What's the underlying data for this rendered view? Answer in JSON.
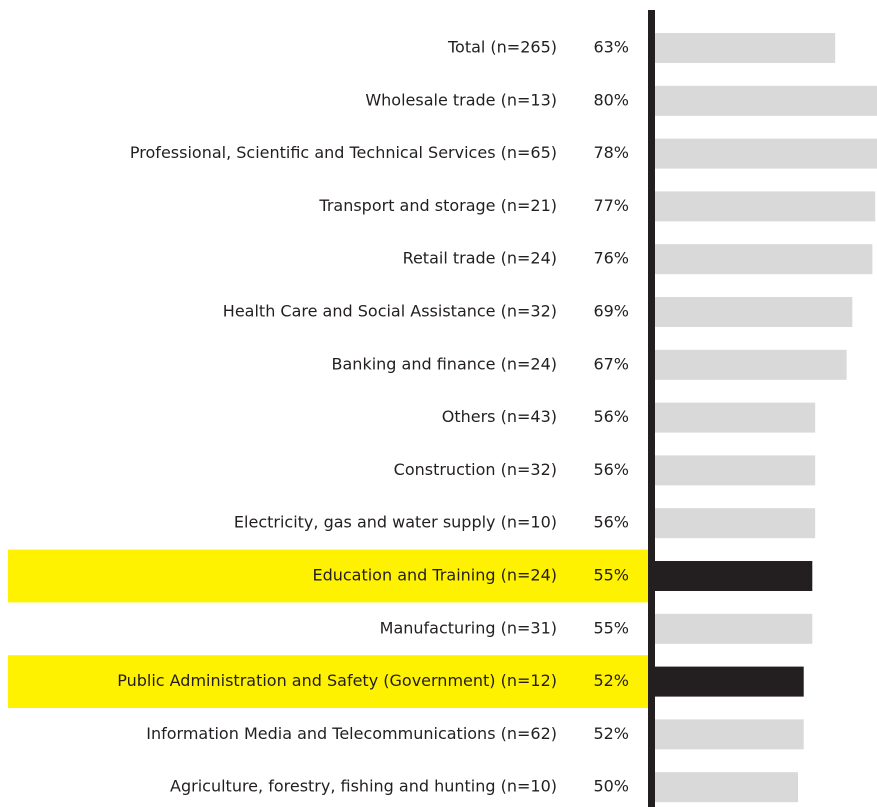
{
  "chart_data": {
    "type": "hbar",
    "categories": [
      "Total (n=265)",
      "Wholesale trade (n=13)",
      "Professional, Scientific and Technical Services (n=65)",
      "Transport and storage (n=21)",
      "Retail trade (n=24)",
      "Health Care and Social Assistance (n=32)",
      "Banking and finance (n=24)",
      "Others (n=43)",
      "Construction (n=32)",
      "Electricity, gas and water supply (n=10)",
      "Education and Training (n=24)",
      "Manufacturing (n=31)",
      "Public Administration and Safety (Government) (n=12)",
      "Information Media and Telecommunications (n=62)",
      "Agriculture, forestry, fishing and hunting (n=10)"
    ],
    "values": [
      63,
      80,
      78,
      77,
      76,
      69,
      67,
      56,
      56,
      56,
      55,
      55,
      52,
      52,
      50
    ],
    "value_labels": [
      "63%",
      "80%",
      "78%",
      "77%",
      "76%",
      "69%",
      "67%",
      "56%",
      "56%",
      "56%",
      "55%",
      "55%",
      "52%",
      "52%",
      "50%"
    ],
    "colors": [
      "#d9d9d9",
      "#d9d9d9",
      "#d9d9d9",
      "#d9d9d9",
      "#d9d9d9",
      "#d9d9d9",
      "#d9d9d9",
      "#d9d9d9",
      "#d9d9d9",
      "#d9d9d9",
      "#231f20",
      "#d9d9d9",
      "#231f20",
      "#d9d9d9",
      "#d9d9d9"
    ],
    "highlighted": [
      10,
      12
    ],
    "highlight_color": "#fff200"
  }
}
